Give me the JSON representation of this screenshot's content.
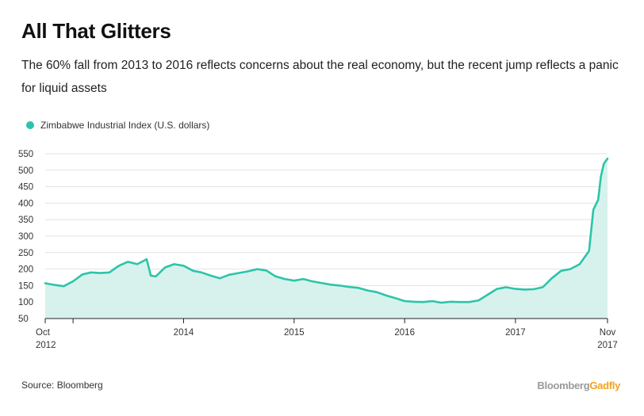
{
  "header": {
    "title": "All That Glitters",
    "subtitle": "The 60% fall from 2013 to 2016 reflects concerns about the real economy, but the recent jump reflects a panic for liquid assets"
  },
  "footer": {
    "source": "Source: Bloomberg",
    "brand_part1": "Bloomberg",
    "brand_part2": "Gadfly"
  },
  "colors": {
    "line": "#2cc4aa",
    "fill": "#d7f2ec",
    "grid": "#e3e3e3",
    "brand_accent": "#f0a31c"
  },
  "chart_data": {
    "type": "area",
    "title": "All That Glitters",
    "series": [
      {
        "name": "Zimbabwe Industrial Index (U.S. dollars)",
        "color": "#2cc4aa",
        "x": [
          "2012-10-01",
          "2012-11-01",
          "2012-12-01",
          "2013-01-01",
          "2013-02-01",
          "2013-03-01",
          "2013-04-01",
          "2013-05-01",
          "2013-06-01",
          "2013-07-01",
          "2013-08-01",
          "2013-09-01",
          "2013-09-15",
          "2013-10-01",
          "2013-11-01",
          "2013-12-01",
          "2014-01-01",
          "2014-02-01",
          "2014-03-01",
          "2014-04-01",
          "2014-05-01",
          "2014-06-01",
          "2014-07-01",
          "2014-08-01",
          "2014-09-01",
          "2014-10-01",
          "2014-11-01",
          "2014-12-01",
          "2015-01-01",
          "2015-02-01",
          "2015-03-01",
          "2015-04-01",
          "2015-05-01",
          "2015-06-01",
          "2015-07-01",
          "2015-08-01",
          "2015-09-01",
          "2015-10-01",
          "2015-11-01",
          "2015-12-01",
          "2016-01-01",
          "2016-02-01",
          "2016-03-01",
          "2016-04-01",
          "2016-05-01",
          "2016-06-01",
          "2016-07-01",
          "2016-08-01",
          "2016-09-01",
          "2016-10-01",
          "2016-11-01",
          "2016-12-01",
          "2017-01-01",
          "2017-02-01",
          "2017-03-01",
          "2017-04-01",
          "2017-05-01",
          "2017-06-01",
          "2017-07-01",
          "2017-08-01",
          "2017-09-01",
          "2017-09-15",
          "2017-10-01",
          "2017-10-10",
          "2017-10-20",
          "2017-11-01"
        ],
        "values": [
          157,
          152,
          148,
          163,
          184,
          190,
          188,
          190,
          210,
          222,
          215,
          230,
          180,
          178,
          205,
          215,
          210,
          195,
          190,
          180,
          172,
          183,
          188,
          193,
          200,
          196,
          178,
          170,
          165,
          170,
          163,
          158,
          153,
          150,
          146,
          143,
          135,
          130,
          120,
          112,
          103,
          101,
          100,
          103,
          98,
          101,
          100,
          100,
          105,
          122,
          140,
          145,
          140,
          138,
          139,
          145,
          172,
          195,
          200,
          215,
          255,
          380,
          410,
          480,
          520,
          535
        ]
      }
    ],
    "x_ticks": [
      {
        "date": "2012-10-01",
        "label": "Oct",
        "label2": "2012"
      },
      {
        "date": "2013-01-01",
        "label": "",
        "label2": ""
      },
      {
        "date": "2014-01-01",
        "label": "2014",
        "label2": ""
      },
      {
        "date": "2015-01-01",
        "label": "2015",
        "label2": ""
      },
      {
        "date": "2016-01-01",
        "label": "2016",
        "label2": ""
      },
      {
        "date": "2017-01-01",
        "label": "2017",
        "label2": ""
      },
      {
        "date": "2017-11-01",
        "label": "Nov",
        "label2": "2017"
      }
    ],
    "y_ticks": [
      50,
      100,
      150,
      200,
      250,
      300,
      350,
      400,
      450,
      500,
      550
    ],
    "xlim": [
      "2012-10-01",
      "2017-11-01"
    ],
    "ylim": [
      50,
      550
    ],
    "xlabel": "",
    "ylabel": "",
    "grid": true,
    "legend_position": "top-left"
  }
}
